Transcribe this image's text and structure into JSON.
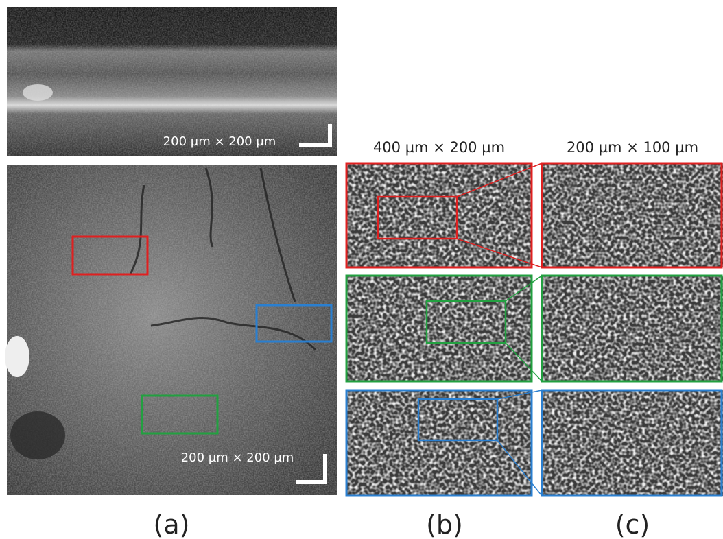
{
  "panel_a": {
    "oct_scale": "200 µm × 200 µm",
    "fundus_scale": "200 µm × 200 µm",
    "label": "(a)"
  },
  "panel_b": {
    "size": "400 µm × 200 µm",
    "label": "(b)"
  },
  "panel_c": {
    "size": "200 µm × 100 µm",
    "label": "(c)"
  }
}
